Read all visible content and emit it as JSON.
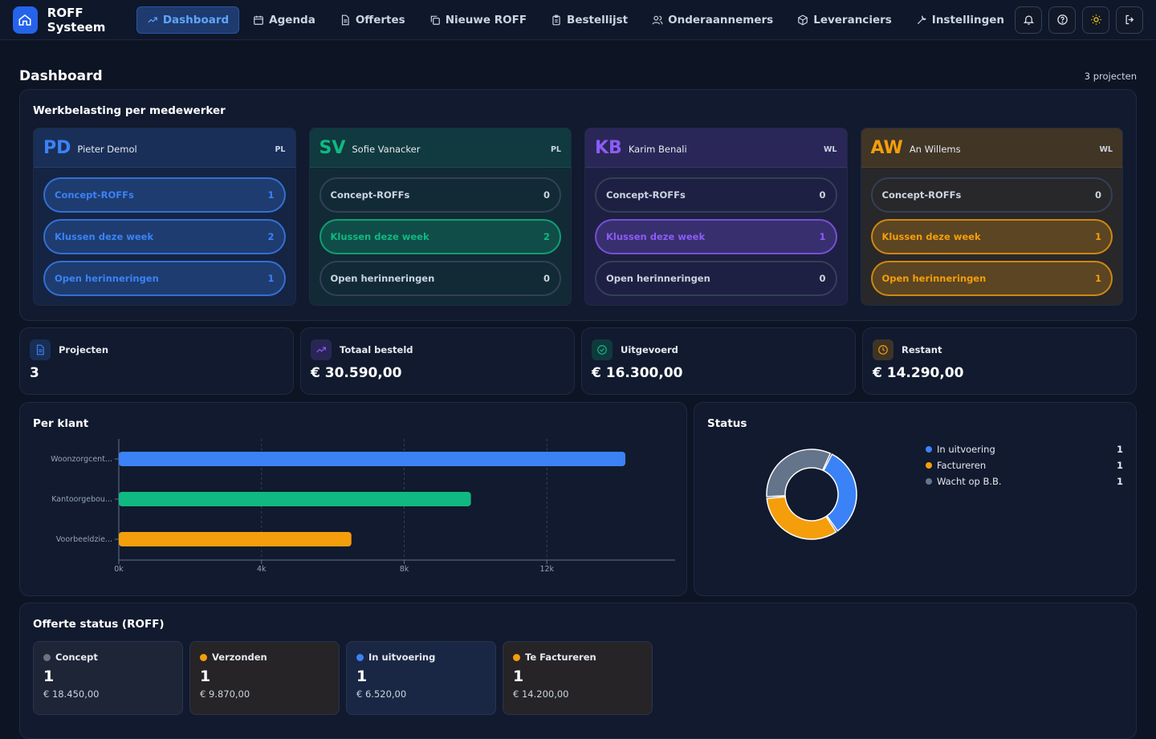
{
  "app": {
    "title": "ROFF Systeem"
  },
  "nav": [
    {
      "label": "Dashboard",
      "icon": "trending-icon",
      "active": true
    },
    {
      "label": "Agenda",
      "icon": "calendar-icon"
    },
    {
      "label": "Offertes",
      "icon": "document-icon"
    },
    {
      "label": "Nieuwe ROFF",
      "icon": "copy-icon"
    },
    {
      "label": "Bestellijst",
      "icon": "clipboard-icon"
    },
    {
      "label": "Onderaannemers",
      "icon": "users-icon"
    },
    {
      "label": "Leveranciers",
      "icon": "package-icon"
    },
    {
      "label": "Instellingen",
      "icon": "wrench-icon"
    }
  ],
  "page": {
    "title": "Dashboard",
    "count": "3 projecten"
  },
  "workload": {
    "title": "Werkbelasting per medewerker",
    "employees": [
      {
        "initials": "PD",
        "name": "Pieter Demol",
        "role": "PL",
        "color": "#3b82f6",
        "rows": [
          {
            "label": "Concept-ROFFs",
            "value": "1"
          },
          {
            "label": "Klussen deze week",
            "value": "2"
          },
          {
            "label": "Open herinneringen",
            "value": "1"
          }
        ]
      },
      {
        "initials": "SV",
        "name": "Sofie Vanacker",
        "role": "PL",
        "color": "#10b981",
        "rows": [
          {
            "label": "Concept-ROFFs",
            "value": "0"
          },
          {
            "label": "Klussen deze week",
            "value": "2"
          },
          {
            "label": "Open herinneringen",
            "value": "0"
          }
        ]
      },
      {
        "initials": "KB",
        "name": "Karim Benali",
        "role": "WL",
        "color": "#8b5cf6",
        "rows": [
          {
            "label": "Concept-ROFFs",
            "value": "0"
          },
          {
            "label": "Klussen deze week",
            "value": "1"
          },
          {
            "label": "Open herinneringen",
            "value": "0"
          }
        ]
      },
      {
        "initials": "AW",
        "name": "An Willems",
        "role": "WL",
        "color": "#f59e0b",
        "rows": [
          {
            "label": "Concept-ROFFs",
            "value": "0"
          },
          {
            "label": "Klussen deze week",
            "value": "1"
          },
          {
            "label": "Open herinneringen",
            "value": "1"
          }
        ]
      }
    ]
  },
  "stats": [
    {
      "label": "Projecten",
      "value": "3",
      "icon": "file-icon",
      "color": "#3b82f6"
    },
    {
      "label": "Totaal besteld",
      "value": "€ 30.590,00",
      "icon": "trending-up-icon",
      "color": "#8b5cf6"
    },
    {
      "label": "Uitgevoerd",
      "value": "€ 16.300,00",
      "icon": "check-circle-icon",
      "color": "#10b981"
    },
    {
      "label": "Restant",
      "value": "€ 14.290,00",
      "icon": "clock-icon",
      "color": "#f59e0b"
    }
  ],
  "per_klant": {
    "title": "Per klant"
  },
  "status": {
    "title": "Status",
    "items": [
      {
        "label": "In uitvoering",
        "value": "1",
        "color": "#3b82f6"
      },
      {
        "label": "Factureren",
        "value": "1",
        "color": "#f59e0b"
      },
      {
        "label": "Wacht op B.B.",
        "value": "1",
        "color": "#64748b"
      }
    ]
  },
  "chart_data": [
    {
      "type": "bar",
      "orientation": "horizontal",
      "title": "Per klant",
      "categories": [
        "Woonzorgcent...",
        "Kantoorgebou...",
        "Voorbeeldzie..."
      ],
      "values": [
        14200,
        9870,
        6520
      ],
      "colors": [
        "#3b82f6",
        "#10b981",
        "#f59e0b"
      ],
      "xlim": [
        0,
        16000
      ],
      "xticks": [
        "0k",
        "4k",
        "8k",
        "12k",
        "16k"
      ],
      "grid": true
    },
    {
      "type": "pie",
      "donut": true,
      "title": "Status",
      "labels": [
        "In uitvoering",
        "Factureren",
        "Wacht op B.B."
      ],
      "values": [
        1,
        1,
        1
      ],
      "colors": [
        "#3b82f6",
        "#f59e0b",
        "#64748b"
      ],
      "legend": "right"
    }
  ],
  "offerte": {
    "title": "Offerte status (ROFF)",
    "items": [
      {
        "label": "Concept",
        "count": "1",
        "amount": "€ 18.450,00",
        "color": "#6b7280",
        "bg": "#1e2536"
      },
      {
        "label": "Verzonden",
        "count": "1",
        "amount": "€ 9.870,00",
        "color": "#f59e0b",
        "bg": "#262426"
      },
      {
        "label": "In uitvoering",
        "count": "1",
        "amount": "€ 6.520,00",
        "color": "#3b82f6",
        "bg": "#1a2744"
      },
      {
        "label": "Te Factureren",
        "count": "1",
        "amount": "€ 14.200,00",
        "color": "#f59e0b",
        "bg": "#262426"
      }
    ]
  }
}
